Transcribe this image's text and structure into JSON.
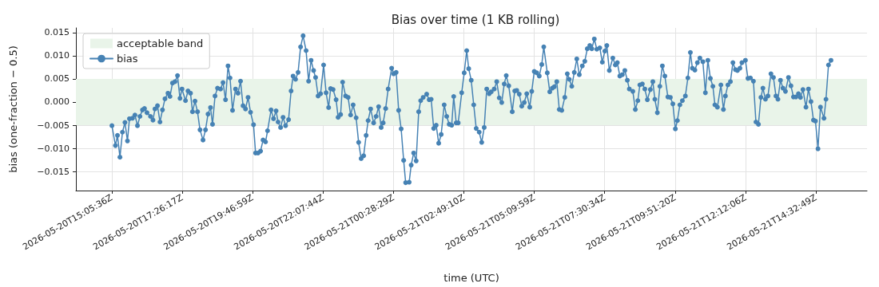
{
  "chart_data": {
    "type": "line",
    "title": "Bias over time (1 KB rolling)",
    "xlabel": "time (UTC)",
    "ylabel": "bias (one-fraction − 0.5)",
    "xlim": [
      "2026-05-20T13:54",
      "2026-05-21T16:15"
    ],
    "xticks": [
      {
        "value": "2026-05-20T15:05:36",
        "label": "2026-05-20T15:05:36Z"
      },
      {
        "value": "2026-05-20T17:26:17",
        "label": "2026-05-20T17:26:17Z"
      },
      {
        "value": "2026-05-20T19:46:59",
        "label": "2026-05-20T19:46:59Z"
      },
      {
        "value": "2026-05-20T22:07:44",
        "label": "2026-05-20T22:07:44Z"
      },
      {
        "value": "2026-05-21T00:28:29",
        "label": "2026-05-21T00:28:29Z"
      },
      {
        "value": "2026-05-21T02:49:10",
        "label": "2026-05-21T02:49:10Z"
      },
      {
        "value": "2026-05-21T05:09:59",
        "label": "2026-05-21T05:09:59Z"
      },
      {
        "value": "2026-05-21T07:30:34",
        "label": "2026-05-21T07:30:34Z"
      },
      {
        "value": "2026-05-21T09:51:20",
        "label": "2026-05-21T09:51:20Z"
      },
      {
        "value": "2026-05-21T12:12:06",
        "label": "2026-05-21T12:12:06Z"
      },
      {
        "value": "2026-05-21T14:32:49",
        "label": "2026-05-21T14:32:49Z"
      }
    ],
    "ylim": [
      -0.0191,
      0.016
    ],
    "yticks": [
      {
        "value": -0.015,
        "label": "−0.015"
      },
      {
        "value": -0.01,
        "label": "−0.010"
      },
      {
        "value": -0.005,
        "label": "−0.005"
      },
      {
        "value": 0,
        "label": "0.000"
      },
      0.005,
      {
        "value": 0.01,
        "label": "0.010"
      },
      0.015
    ],
    "bands": [
      {
        "axis": "y",
        "from": -0.005,
        "to": 0.005,
        "label": "acceptable band",
        "color": "#e9f4e9"
      }
    ],
    "grid": true,
    "legend": "top left",
    "marker": "circle",
    "line_style": "solid",
    "series": [
      {
        "name": "bias",
        "color": "#4682b4",
        "x": [
          "2026-05-20T15:06",
          "2026-05-20T15:13",
          "2026-05-20T15:17",
          "2026-05-20T15:22",
          "2026-05-20T15:27",
          "2026-05-20T15:32",
          "2026-05-20T15:37",
          "2026-05-20T15:41",
          "2026-05-20T15:47",
          "2026-05-20T15:52",
          "2026-05-20T15:57",
          "2026-05-20T16:02",
          "2026-05-20T16:07",
          "2026-05-20T16:11",
          "2026-05-20T16:16",
          "2026-05-20T16:23",
          "2026-05-20T16:28",
          "2026-05-20T16:32",
          "2026-05-20T16:37",
          "2026-05-20T16:42",
          "2026-05-20T16:47",
          "2026-05-20T16:52",
          "2026-05-20T16:58",
          "2026-05-20T17:02",
          "2026-05-20T17:07",
          "2026-05-20T17:12",
          "2026-05-20T17:17",
          "2026-05-20T17:22",
          "2026-05-20T17:26",
          "2026-05-20T17:33",
          "2026-05-20T17:38",
          "2026-05-20T17:43",
          "2026-05-20T17:47",
          "2026-05-20T17:52",
          "2026-05-20T17:57",
          "2026-05-20T18:02",
          "2026-05-20T18:08",
          "2026-05-20T18:13",
          "2026-05-20T18:18",
          "2026-05-20T18:23",
          "2026-05-20T18:27",
          "2026-05-20T18:32",
          "2026-05-20T18:37",
          "2026-05-20T18:43",
          "2026-05-20T18:48",
          "2026-05-20T18:53",
          "2026-05-20T18:58",
          "2026-05-20T19:02",
          "2026-05-20T19:07",
          "2026-05-20T19:13",
          "2026-05-20T19:18",
          "2026-05-20T19:23",
          "2026-05-20T19:28",
          "2026-05-20T19:33",
          "2026-05-20T19:38",
          "2026-05-20T19:43",
          "2026-05-20T19:49",
          "2026-05-20T19:53",
          "2026-05-20T19:58",
          "2026-05-20T20:03",
          "2026-05-20T20:08",
          "2026-05-20T20:13",
          "2026-05-20T20:17",
          "2026-05-20T20:24",
          "2026-05-20T20:29",
          "2026-05-20T20:34",
          "2026-05-20T20:38",
          "2026-05-20T20:43",
          "2026-05-20T20:48",
          "2026-05-20T20:53",
          "2026-05-20T20:59",
          "2026-05-20T21:04",
          "2026-05-20T21:08",
          "2026-05-20T21:13",
          "2026-05-20T21:18",
          "2026-05-20T21:23",
          "2026-05-20T21:28",
          "2026-05-20T21:34",
          "2026-05-20T21:39",
          "2026-05-20T21:44",
          "2026-05-20T21:49",
          "2026-05-20T21:53",
          "2026-05-20T21:58",
          "2026-05-20T22:03",
          "2026-05-20T22:09",
          "2026-05-20T22:14",
          "2026-05-20T22:19",
          "2026-05-20T22:23",
          "2026-05-20T22:28",
          "2026-05-20T22:34",
          "2026-05-20T22:38",
          "2026-05-20T22:43",
          "2026-05-20T22:47",
          "2026-05-20T22:53",
          "2026-05-20T22:58",
          "2026-05-20T23:03",
          "2026-05-20T23:08",
          "2026-05-20T23:14",
          "2026-05-20T23:19",
          "2026-05-20T23:24",
          "2026-05-20T23:29",
          "2026-05-20T23:34",
          "2026-05-20T23:38",
          "2026-05-20T23:43",
          "2026-05-20T23:49",
          "2026-05-20T23:54",
          "2026-05-20T23:59",
          "2026-05-21T00:04",
          "2026-05-21T00:08",
          "2026-05-21T00:13",
          "2026-05-21T00:18",
          "2026-05-21T00:25",
          "2026-05-21T00:29",
          "2026-05-21T00:34",
          "2026-05-21T00:39",
          "2026-05-21T00:44",
          "2026-05-21T00:49",
          "2026-05-21T00:53",
          "2026-05-21T01:00",
          "2026-05-21T01:04",
          "2026-05-21T01:09",
          "2026-05-21T01:14",
          "2026-05-21T01:19",
          "2026-05-21T01:23",
          "2026-05-21T01:28",
          "2026-05-21T01:35",
          "2026-05-21T01:40",
          "2026-05-21T01:44",
          "2026-05-21T01:49",
          "2026-05-21T01:54",
          "2026-05-21T01:59",
          "2026-05-21T02:04",
          "2026-05-21T02:10",
          "2026-05-21T02:15",
          "2026-05-21T02:20",
          "2026-05-21T02:25",
          "2026-05-21T02:29",
          "2026-05-21T02:34",
          "2026-05-21T02:38",
          "2026-05-21T02:45",
          "2026-05-21T02:50",
          "2026-05-21T02:55",
          "2026-05-21T02:59",
          "2026-05-21T03:04",
          "2026-05-21T03:09",
          "2026-05-21T03:14",
          "2026-05-21T03:20",
          "2026-05-21T03:25",
          "2026-05-21T03:30",
          "2026-05-21T03:35",
          "2026-05-21T03:40",
          "2026-05-21T03:44",
          "2026-05-21T03:50",
          "2026-05-21T03:55",
          "2026-05-21T04:00",
          "2026-05-21T04:05",
          "2026-05-21T04:10",
          "2026-05-21T04:14",
          "2026-05-21T04:19",
          "2026-05-21T04:26",
          "2026-05-21T04:31",
          "2026-05-21T04:35",
          "2026-05-21T04:40",
          "2026-05-21T04:45",
          "2026-05-21T04:50",
          "2026-05-21T04:55",
          "2026-05-21T05:01",
          "2026-05-21T05:05",
          "2026-05-21T05:10",
          "2026-05-21T05:15",
          "2026-05-21T05:20",
          "2026-05-21T05:25",
          "2026-05-21T05:29",
          "2026-05-21T05:36",
          "2026-05-21T05:41",
          "2026-05-21T05:46",
          "2026-05-21T05:50",
          "2026-05-21T05:55",
          "2026-05-21T06:00",
          "2026-05-21T06:05",
          "2026-05-21T06:11",
          "2026-05-21T06:16",
          "2026-05-21T06:20",
          "2026-05-21T06:25",
          "2026-05-21T06:30",
          "2026-05-21T06:35",
          "2026-05-21T06:40",
          "2026-05-21T06:46",
          "2026-05-21T06:51",
          "2026-05-21T06:56",
          "2026-05-21T07:01",
          "2026-05-21T07:05",
          "2026-05-21T07:10",
          "2026-05-21T07:15",
          "2026-05-21T07:21",
          "2026-05-21T07:26",
          "2026-05-21T07:31",
          "2026-05-21T07:35",
          "2026-05-21T07:40",
          "2026-05-21T07:47",
          "2026-05-21T07:52",
          "2026-05-21T07:56",
          "2026-05-21T08:01",
          "2026-05-21T08:06",
          "2026-05-21T08:11",
          "2026-05-21T08:16",
          "2026-05-21T08:20",
          "2026-05-21T08:27",
          "2026-05-21T08:32",
          "2026-05-21T08:37",
          "2026-05-21T08:41",
          "2026-05-21T08:46",
          "2026-05-21T08:51",
          "2026-05-21T08:56",
          "2026-05-21T09:02",
          "2026-05-21T09:07",
          "2026-05-21T09:11",
          "2026-05-21T09:16",
          "2026-05-21T09:21",
          "2026-05-21T09:26",
          "2026-05-21T09:31",
          "2026-05-21T09:37",
          "2026-05-21T09:42",
          "2026-05-21T09:47",
          "2026-05-21T09:52",
          "2026-05-21T09:56",
          "2026-05-21T10:01",
          "2026-05-21T10:06",
          "2026-05-21T10:12",
          "2026-05-21T10:17",
          "2026-05-21T10:22",
          "2026-05-21T10:26",
          "2026-05-21T10:31",
          "2026-05-21T10:36",
          "2026-05-21T10:41",
          "2026-05-21T10:47",
          "2026-05-21T10:52",
          "2026-05-21T10:57",
          "2026-05-21T11:02",
          "2026-05-21T11:07",
          "2026-05-21T11:11",
          "2026-05-21T11:16",
          "2026-05-21T11:23",
          "2026-05-21T11:28",
          "2026-05-21T11:32",
          "2026-05-21T11:37",
          "2026-05-21T11:42",
          "2026-05-21T11:47",
          "2026-05-21T11:52",
          "2026-05-21T11:56",
          "2026-05-21T12:01",
          "2026-05-21T12:05",
          "2026-05-21T12:12",
          "2026-05-21T12:17",
          "2026-05-21T12:22",
          "2026-05-21T12:28",
          "2026-05-21T12:33",
          "2026-05-21T12:38",
          "2026-05-21T12:43",
          "2026-05-21T12:47",
          "2026-05-21T12:52",
          "2026-05-21T12:57",
          "2026-05-21T13:03",
          "2026-05-21T13:08",
          "2026-05-21T13:13",
          "2026-05-21T13:17",
          "2026-05-21T13:22",
          "2026-05-21T13:27",
          "2026-05-21T13:32",
          "2026-05-21T13:38",
          "2026-05-21T13:43",
          "2026-05-21T13:48",
          "2026-05-21T13:53",
          "2026-05-21T13:58",
          "2026-05-21T14:02",
          "2026-05-21T14:07",
          "2026-05-21T14:13",
          "2026-05-21T14:18",
          "2026-05-21T14:23",
          "2026-05-21T14:28",
          "2026-05-21T14:32",
          "2026-05-21T14:37",
          "2026-05-21T14:42",
          "2026-05-21T14:49",
          "2026-05-21T14:53",
          "2026-05-21T14:58",
          "2026-05-21T15:03"
        ],
        "values": [
          -0.0051,
          -0.0094,
          -0.0072,
          -0.0119,
          -0.0065,
          -0.0044,
          -0.0084,
          -0.0036,
          -0.0035,
          -0.0028,
          -0.0051,
          -0.0031,
          -0.0017,
          -0.0014,
          -0.0023,
          -0.0031,
          -0.0039,
          -0.0015,
          -0.0008,
          -0.0043,
          -0.0017,
          0.0007,
          0.0019,
          0.0012,
          0.0041,
          0.0044,
          0.0057,
          0.0008,
          0.0028,
          0.0003,
          0.0024,
          0.0019,
          -0.0021,
          0.0002,
          -0.0021,
          -0.006,
          -0.0082,
          -0.006,
          -0.0026,
          -0.0012,
          -0.0048,
          0.0013,
          0.003,
          0.0028,
          0.0042,
          0.0005,
          0.0078,
          0.0052,
          -0.0018,
          0.0028,
          0.0019,
          0.0045,
          -0.0008,
          -0.0015,
          0.001,
          -0.0022,
          -0.0049,
          -0.011,
          -0.011,
          -0.0106,
          -0.0082,
          -0.0086,
          -0.0062,
          -0.0017,
          -0.0036,
          -0.0019,
          -0.0043,
          -0.0055,
          -0.0033,
          -0.0051,
          -0.0038,
          0.0024,
          0.0056,
          0.0049,
          0.0064,
          0.0119,
          0.0143,
          0.0111,
          0.0045,
          0.009,
          0.0068,
          0.0053,
          0.0013,
          0.0018,
          0.008,
          0.002,
          -0.0012,
          0.0029,
          0.0027,
          0.0005,
          -0.0033,
          -0.0027,
          0.0043,
          0.0013,
          0.001,
          -0.0028,
          -0.0006,
          -0.0034,
          -0.0087,
          -0.0122,
          -0.0116,
          -0.0072,
          -0.004,
          -0.0015,
          -0.0045,
          -0.0031,
          -0.001,
          -0.0055,
          -0.0045,
          -0.0014,
          0.0028,
          0.0073,
          0.0061,
          0.0064,
          -0.0018,
          -0.0058,
          -0.0126,
          -0.0174,
          -0.0173,
          -0.0136,
          -0.011,
          -0.0127,
          -0.0021,
          0.0003,
          0.001,
          0.0017,
          0.0005,
          0.0006,
          -0.0057,
          -0.005,
          -0.0089,
          -0.007,
          -0.0006,
          -0.0031,
          -0.0048,
          -0.005,
          0.0012,
          -0.0045,
          -0.0045,
          0.002,
          0.0063,
          0.0111,
          0.0072,
          0.0047,
          -0.0006,
          -0.0057,
          -0.0065,
          -0.0087,
          -0.0055,
          0.0028,
          0.0018,
          0.0022,
          0.0028,
          0.0044,
          0.0009,
          -0.0001,
          0.0039,
          0.0057,
          0.0035,
          -0.0021,
          0.0024,
          0.0025,
          0.0017,
          -0.0009,
          -0.0001,
          0.0018,
          -0.0011,
          0.0023,
          0.0066,
          0.0063,
          0.0056,
          0.0081,
          0.0119,
          0.0063,
          0.0022,
          0.003,
          0.0033,
          0.0044,
          -0.0016,
          -0.0018,
          0.001,
          0.0061,
          0.0049,
          0.0034,
          0.0064,
          0.0093,
          0.0059,
          0.0078,
          0.0088,
          0.0115,
          0.0122,
          0.0115,
          0.0136,
          0.0114,
          0.0117,
          0.0086,
          0.011,
          0.0122,
          0.0068,
          0.0095,
          0.008,
          0.0085,
          0.0056,
          0.0059,
          0.0068,
          0.0047,
          0.0028,
          0.0023,
          -0.0016,
          0.0003,
          0.0037,
          0.0039,
          0.0028,
          0.0005,
          0.0027,
          0.0044,
          0.0006,
          -0.0023,
          0.0034,
          0.0078,
          0.0056,
          0.0011,
          0.001,
          -0.0004,
          -0.0058,
          -0.004,
          -0.0006,
          0.0003,
          0.0013,
          0.0052,
          0.0107,
          0.0073,
          0.0069,
          0.0085,
          0.0095,
          0.0087,
          0.002,
          0.009,
          0.0051,
          0.0034,
          -0.0006,
          -0.0011,
          0.0037,
          -0.0016,
          0.0013,
          0.0037,
          0.0044,
          0.0085,
          0.007,
          0.0068,
          0.0073,
          0.0085,
          0.009,
          0.0051,
          0.0052,
          0.0045,
          -0.0043,
          -0.0048,
          0.001,
          0.003,
          0.0006,
          0.0013,
          0.0061,
          0.0053,
          0.0013,
          0.0006,
          0.0047,
          0.003,
          0.0023,
          0.0053,
          0.0035,
          0.0011,
          0.0011,
          0.0018,
          0.001,
          0.0027,
          -0.0011,
          0.0028,
          0.0001,
          -0.0039,
          -0.0041,
          -0.0101,
          -0.0011,
          -0.0035,
          0.0006,
          0.008,
          0.009
        ]
      }
    ]
  }
}
